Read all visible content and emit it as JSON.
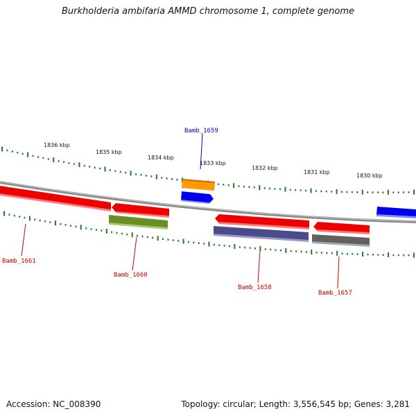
{
  "title": "Burkholderia ambifaria AMMD chromosome 1, complete genome",
  "footer": {
    "accession": "Accession: NC_008390",
    "topology": "Topology: circular; Length: 3,556,545 bp; Genes: 3,281"
  },
  "kbp_labels": [
    "1836 kbp",
    "1835 kbp",
    "1834 kbp",
    "1833 kbp",
    "1832 kbp",
    "1831 kbp",
    "1830 kbp"
  ],
  "genes": [
    {
      "name": "Bamb_1661",
      "label_color": "#cc0000"
    },
    {
      "name": "Bamb_1660",
      "label_color": "#cc0000"
    },
    {
      "name": "Bamb_1659",
      "label_color": "#0000cc"
    },
    {
      "name": "Bamb_1658",
      "label_color": "#cc0000"
    },
    {
      "name": "Bamb_1657",
      "label_color": "#cc0000"
    }
  ],
  "colors": {
    "ticks": "#227722",
    "backbone": "#888888",
    "cds_red": "#ff0000",
    "cds_blue": "#0000ff",
    "orange": "#ff9900",
    "olive": "#6b8e23",
    "purple": "#4b4a8a",
    "grey": "#666666"
  }
}
